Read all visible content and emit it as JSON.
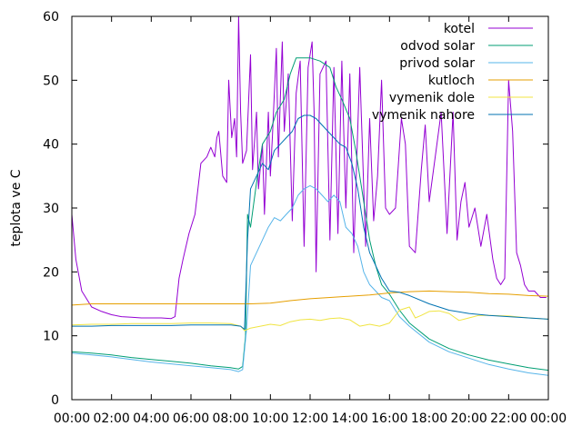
{
  "chart_data": {
    "type": "line",
    "ylabel": "teplota ve C",
    "xlabel": "",
    "title": "",
    "xlim": [
      0,
      24
    ],
    "ylim": [
      0,
      60
    ],
    "xticks": [
      0,
      2,
      4,
      6,
      8,
      10,
      12,
      14,
      16,
      18,
      20,
      22,
      24
    ],
    "xtick_labels": [
      "00:00",
      "02:00",
      "04:00",
      "06:00",
      "08:00",
      "10:00",
      "12:00",
      "14:00",
      "16:00",
      "18:00",
      "20:00",
      "22:00",
      "00:00"
    ],
    "yticks": [
      0,
      10,
      20,
      30,
      40,
      50,
      60
    ],
    "ytick_labels": [
      "0",
      "10",
      "20",
      "30",
      "40",
      "50",
      "60"
    ],
    "grid": false,
    "legend_position": "top-right",
    "series": [
      {
        "name": "kotel",
        "color": "#9400d3",
        "x": [
          0,
          0.2,
          0.5,
          1,
          1.5,
          2,
          2.5,
          3,
          3.5,
          4,
          4.5,
          5,
          5.2,
          5.4,
          5.6,
          5.9,
          6.2,
          6.5,
          6.8,
          7.0,
          7.2,
          7.3,
          7.4,
          7.6,
          7.8,
          7.9,
          8.05,
          8.2,
          8.3,
          8.4,
          8.5,
          8.6,
          8.8,
          9.0,
          9.1,
          9.3,
          9.4,
          9.6,
          9.7,
          9.9,
          10.0,
          10.1,
          10.3,
          10.4,
          10.6,
          10.7,
          10.9,
          11.1,
          11.3,
          11.5,
          11.7,
          11.9,
          12.1,
          12.2,
          12.3,
          12.5,
          12.8,
          13.0,
          13.2,
          13.4,
          13.6,
          13.8,
          14.0,
          14.2,
          14.5,
          14.8,
          15.0,
          15.2,
          15.4,
          15.6,
          15.8,
          16.0,
          16.3,
          16.6,
          16.8,
          17.0,
          17.3,
          17.6,
          17.8,
          18.0,
          18.3,
          18.6,
          18.9,
          19.2,
          19.4,
          19.6,
          19.8,
          20.0,
          20.3,
          20.6,
          20.9,
          21.2,
          21.4,
          21.6,
          21.8,
          22.0,
          22.2,
          22.4,
          22.6,
          22.8,
          23.0,
          23.3,
          23.6,
          23.9
        ],
        "values": [
          29,
          22,
          17,
          14.5,
          13.8,
          13.3,
          13.0,
          12.9,
          12.8,
          12.8,
          12.8,
          12.7,
          13.0,
          19,
          22,
          26,
          29,
          37,
          38,
          39.5,
          38,
          41,
          42,
          35,
          34,
          50,
          41,
          44,
          38,
          60,
          45,
          37,
          39,
          54,
          36,
          45,
          33,
          40,
          29,
          45,
          35,
          41,
          55,
          38,
          56,
          42,
          51,
          28,
          48,
          53,
          24,
          52,
          56,
          45,
          20,
          51,
          53,
          25,
          52,
          26,
          53,
          30,
          51,
          23,
          52,
          24,
          44,
          28,
          35,
          50,
          30,
          29,
          30,
          44,
          40,
          24,
          23,
          36,
          43,
          31,
          38,
          45,
          26,
          45,
          25,
          31,
          34,
          27,
          30,
          24,
          29,
          22,
          19,
          18,
          19,
          50,
          42,
          23,
          21,
          18,
          17,
          17,
          16,
          16
        ]
      },
      {
        "name": "odvod solar",
        "color": "#009e73",
        "x": [
          0,
          1,
          2,
          3,
          4,
          5,
          6,
          7,
          8,
          8.4,
          8.6,
          8.75,
          8.85,
          9.0,
          9.3,
          9.6,
          10.0,
          10.3,
          10.7,
          11.0,
          11.3,
          11.6,
          12.0,
          12.5,
          13.0,
          13.3,
          13.6,
          14.0,
          14.3,
          14.6,
          15.0,
          15.3,
          15.6,
          16.0,
          16.5,
          17.0,
          18.0,
          19.0,
          20.0,
          21.0,
          22.0,
          23.0,
          24.0
        ],
        "values": [
          7.5,
          7.3,
          7.0,
          6.6,
          6.3,
          6.0,
          5.7,
          5.3,
          5.0,
          4.8,
          5.2,
          10,
          29,
          27,
          34,
          40,
          42,
          45,
          47,
          51,
          53.5,
          53.5,
          53.5,
          53,
          52,
          49,
          47,
          44,
          39,
          33,
          25,
          21,
          18,
          16.5,
          14,
          12,
          9.5,
          8,
          7,
          6.2,
          5.6,
          5.0,
          4.6
        ]
      },
      {
        "name": "privod solar",
        "color": "#56b4e9",
        "x": [
          0,
          1,
          2,
          3,
          4,
          5,
          6,
          7,
          8,
          8.4,
          8.6,
          8.8,
          9.0,
          9.3,
          9.6,
          9.9,
          10.2,
          10.5,
          10.8,
          11.1,
          11.4,
          11.7,
          12.0,
          12.3,
          12.6,
          12.9,
          13.2,
          13.5,
          13.8,
          14.1,
          14.4,
          14.7,
          15.0,
          15.3,
          15.6,
          16.0,
          16.5,
          17.0,
          18.0,
          19.0,
          20.0,
          21.0,
          22.0,
          23.0,
          24.0
        ],
        "values": [
          7.3,
          7.0,
          6.7,
          6.3,
          5.9,
          5.6,
          5.3,
          5.0,
          4.7,
          4.4,
          4.7,
          11,
          21,
          23,
          25,
          27,
          28.5,
          28,
          29,
          30,
          32,
          33,
          33.5,
          33,
          32,
          31,
          32,
          31,
          27,
          26,
          24,
          20,
          18,
          17,
          16,
          15.5,
          13,
          11.5,
          9,
          7.5,
          6.5,
          5.5,
          4.8,
          4.2,
          3.8
        ]
      },
      {
        "name": "kutloch",
        "color": "#e69f00",
        "x": [
          0,
          1,
          2,
          3,
          4,
          5,
          6,
          7,
          8,
          9,
          10,
          11,
          12,
          13,
          14,
          15,
          16,
          17,
          18,
          19,
          20,
          21,
          22,
          23,
          24
        ],
        "values": [
          14.8,
          15.0,
          15.0,
          15.0,
          15.0,
          15.0,
          15.0,
          15.0,
          15.0,
          15.0,
          15.1,
          15.5,
          15.8,
          16.0,
          16.2,
          16.4,
          16.7,
          16.9,
          17.0,
          16.9,
          16.8,
          16.6,
          16.5,
          16.3,
          16.2
        ]
      },
      {
        "name": "vymenik dole",
        "color": "#f0e442",
        "x": [
          0,
          1,
          2,
          3,
          4,
          5,
          6,
          7,
          8,
          8.5,
          8.7,
          9.0,
          9.5,
          10.0,
          10.5,
          11.0,
          11.5,
          12.0,
          12.5,
          13.0,
          13.5,
          14.0,
          14.5,
          15.0,
          15.5,
          16.0,
          16.5,
          17.0,
          17.3,
          17.6,
          18.0,
          18.5,
          19.0,
          19.5,
          20.0,
          20.5,
          21.0,
          22.0,
          23.0,
          24.0
        ],
        "values": [
          11.7,
          11.8,
          11.8,
          11.9,
          11.9,
          11.9,
          12.0,
          12.0,
          11.9,
          11.5,
          10.8,
          11.2,
          11.5,
          11.8,
          11.6,
          12.2,
          12.5,
          12.6,
          12.4,
          12.7,
          12.8,
          12.5,
          11.5,
          11.8,
          11.5,
          12.0,
          14.0,
          14.5,
          12.8,
          13.2,
          13.8,
          13.9,
          13.5,
          12.4,
          12.8,
          13.2,
          13.2,
          13.1,
          12.8,
          12.6
        ]
      },
      {
        "name": "vymenik nahore",
        "color": "#0072b2",
        "x": [
          0,
          1,
          2,
          3,
          4,
          5,
          6,
          7,
          8,
          8.5,
          8.7,
          8.85,
          9.0,
          9.3,
          9.6,
          9.9,
          10.2,
          10.5,
          10.8,
          11.1,
          11.4,
          11.7,
          12.0,
          12.3,
          12.6,
          12.9,
          13.2,
          13.5,
          13.8,
          14.1,
          14.4,
          14.7,
          15.0,
          15.3,
          15.6,
          16.0,
          16.5,
          17.0,
          18.0,
          19.0,
          20.0,
          21.0,
          22.0,
          23.0,
          24.0
        ],
        "values": [
          11.5,
          11.5,
          11.6,
          11.6,
          11.6,
          11.6,
          11.7,
          11.7,
          11.7,
          11.5,
          11.0,
          25,
          33,
          35,
          37,
          36,
          39,
          40,
          41,
          42,
          44,
          44.5,
          44.5,
          44,
          43,
          42,
          41,
          40,
          39.5,
          37,
          33,
          27,
          23,
          21,
          19,
          17,
          16.8,
          16.3,
          15.0,
          14.0,
          13.5,
          13.2,
          13.0,
          12.8,
          12.6
        ]
      }
    ]
  }
}
